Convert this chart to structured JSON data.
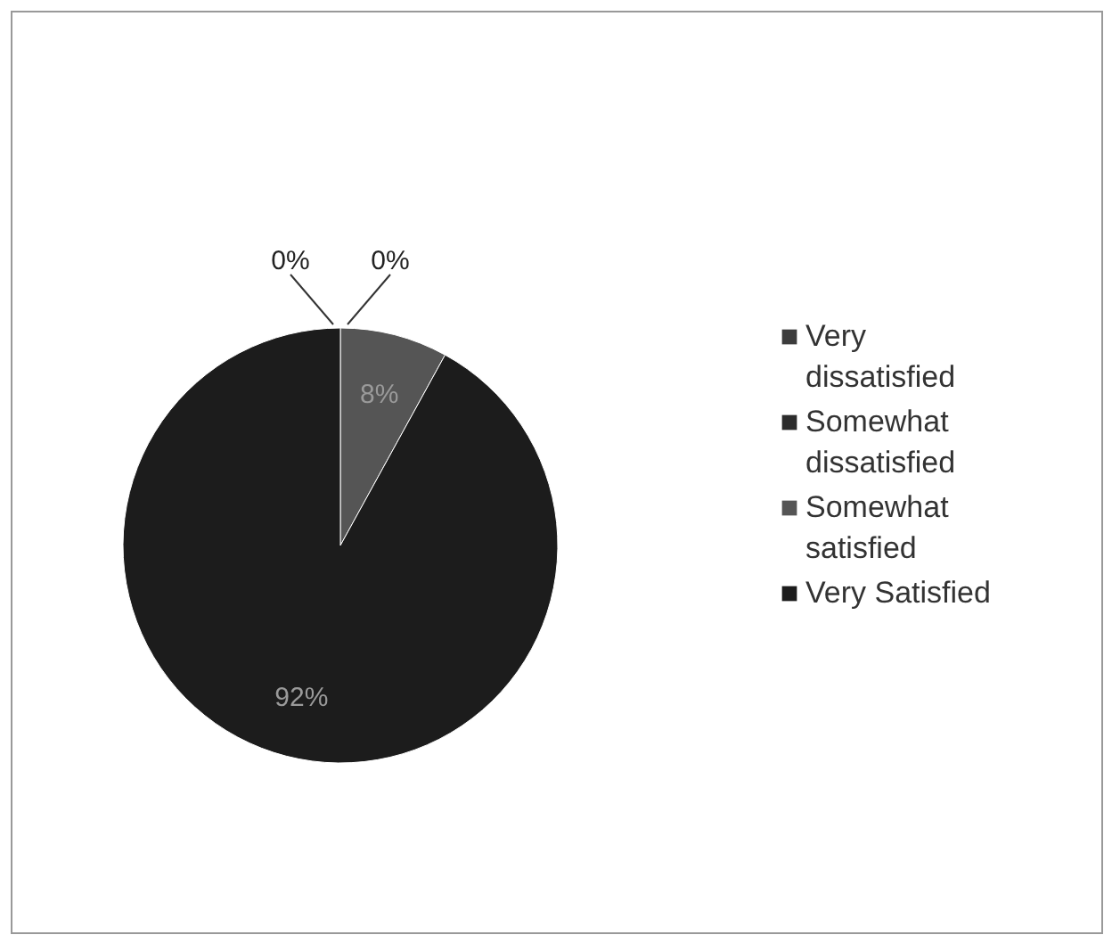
{
  "chart_data": {
    "type": "pie",
    "categories": [
      "Very dissatisfied",
      "Somewhat dissatisfied",
      "Somewhat satisfied",
      "Very Satisfied"
    ],
    "values": [
      0,
      0,
      8,
      92
    ],
    "colors": [
      "#3c3c3c",
      "#2c2c2c",
      "#555555",
      "#1c1c1c"
    ],
    "value_labels": [
      "0%",
      "0%",
      "8%",
      "92%"
    ],
    "legend": "right"
  }
}
